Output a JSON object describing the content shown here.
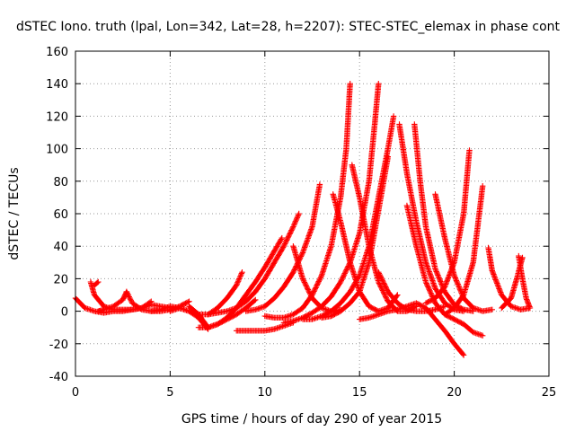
{
  "chart_data": {
    "type": "scatter",
    "title": "dSTEC Iono. truth (lpal, Lon=342, Lat=28, h=2207): STEC-STEC_elemax in phase cont",
    "xlabel": "GPS time / hours of day 290 of year 2015",
    "ylabel": "dSTEC  / TECUs",
    "xlim": [
      0,
      25
    ],
    "ylim": [
      -40,
      160
    ],
    "xticks": [
      "0",
      "5",
      "10",
      "15",
      "20",
      "25"
    ],
    "yticks": [
      "-40",
      "-20",
      "0",
      "20",
      "40",
      "60",
      "80",
      "100",
      "120",
      "140",
      "160"
    ],
    "grid": true,
    "marker": "plus",
    "color": "#ff0000",
    "tracks": [
      {
        "x": [
          0.0,
          0.5,
          1.0,
          1.5,
          2.0,
          2.5,
          3.0,
          3.5,
          4.0,
          4.5,
          5.0
        ],
        "y": [
          8,
          2,
          0,
          -1,
          0,
          0,
          1,
          2,
          4,
          3,
          2
        ]
      },
      {
        "x": [
          0.8,
          1.0,
          1.5,
          2.0,
          2.5,
          3.0,
          3.5,
          4.0
        ],
        "y": [
          18,
          10,
          3,
          1,
          1,
          1,
          2,
          6
        ]
      },
      {
        "x": [
          1.0,
          1.2
        ],
        "y": [
          16,
          18
        ]
      },
      {
        "x": [
          1.2,
          1.5,
          2.0,
          2.5,
          2.7
        ],
        "y": [
          0,
          1,
          3,
          7,
          12
        ]
      },
      {
        "x": [
          2.7,
          3.0,
          3.5,
          4.0,
          4.5,
          5.0,
          5.5,
          6.0
        ],
        "y": [
          12,
          5,
          1,
          0,
          0,
          1,
          3,
          6
        ]
      },
      {
        "x": [
          4.0,
          4.5,
          5.0,
          5.5,
          6.0,
          6.5,
          7.0
        ],
        "y": [
          0,
          1,
          3,
          2,
          0,
          -4,
          -11
        ]
      },
      {
        "x": [
          5.0,
          5.5,
          6.0,
          6.5,
          7.0,
          7.5,
          8.0,
          8.5,
          8.8
        ],
        "y": [
          0,
          2,
          0,
          -2,
          -2,
          2,
          8,
          16,
          24
        ]
      },
      {
        "x": [
          6.0,
          6.5,
          7.0,
          7.5,
          8.0,
          8.5,
          9.0,
          9.5
        ],
        "y": [
          3,
          -2,
          -10,
          -8,
          -5,
          -2,
          2,
          7
        ]
      },
      {
        "x": [
          6.5,
          7.0,
          7.5,
          8.0,
          8.5,
          9.0,
          9.5,
          10.0,
          10.5,
          10.9
        ],
        "y": [
          -10,
          -10,
          -8,
          -4,
          2,
          10,
          18,
          27,
          37,
          45
        ]
      },
      {
        "x": [
          7.0,
          7.5,
          8.0,
          8.5,
          9.0,
          9.5,
          10.0,
          10.5,
          11.0,
          11.5,
          11.8
        ],
        "y": [
          -2,
          -1,
          0,
          2,
          6,
          12,
          20,
          30,
          40,
          52,
          60
        ]
      },
      {
        "x": [
          8.5,
          9.0,
          9.5,
          10.0,
          10.5,
          11.0,
          11.5
        ],
        "y": [
          -12,
          -12,
          -12,
          -12,
          -11,
          -9,
          -7
        ]
      },
      {
        "x": [
          9.0,
          9.5,
          10.0,
          10.5,
          11.0,
          11.5,
          12.0,
          12.5,
          12.9
        ],
        "y": [
          0,
          1,
          3,
          8,
          15,
          24,
          36,
          52,
          78
        ]
      },
      {
        "x": [
          10.0,
          10.5,
          11.0,
          11.5,
          12.0,
          12.5,
          13.0,
          13.5,
          14.0,
          14.3,
          14.5
        ],
        "y": [
          -3,
          -4,
          -4,
          -2,
          2,
          10,
          22,
          40,
          70,
          100,
          140
        ]
      },
      {
        "x": [
          11.0,
          11.5,
          12.0,
          12.5,
          13.0,
          13.5,
          14.0,
          14.5,
          15.0,
          15.5,
          15.8,
          16.0
        ],
        "y": [
          -7,
          -6,
          -4,
          -1,
          3,
          9,
          18,
          30,
          48,
          80,
          115,
          140
        ]
      },
      {
        "x": [
          12.0,
          12.5,
          13.0,
          13.5,
          14.0,
          14.5,
          15.0,
          15.5,
          16.0,
          16.5,
          16.8
        ],
        "y": [
          -5,
          -5,
          -3,
          0,
          5,
          12,
          22,
          40,
          70,
          100,
          120
        ]
      },
      {
        "x": [
          13.0,
          13.5,
          14.0,
          14.5,
          15.0,
          15.5,
          16.0,
          16.5
        ],
        "y": [
          -4,
          -3,
          0,
          5,
          12,
          30,
          62,
          95
        ]
      },
      {
        "x": [
          11.5,
          12.0,
          12.5,
          13.0,
          13.5,
          14.0
        ],
        "y": [
          40,
          20,
          8,
          2,
          0,
          1
        ]
      },
      {
        "x": [
          13.6,
          14.0,
          14.5,
          15.0,
          15.5,
          16.0,
          16.5,
          17.0
        ],
        "y": [
          72,
          55,
          30,
          12,
          3,
          0,
          2,
          10
        ]
      },
      {
        "x": [
          14.6,
          15.0,
          15.5,
          16.0,
          16.5,
          17.0,
          17.5,
          18.0
        ],
        "y": [
          90,
          70,
          40,
          18,
          6,
          0,
          0,
          3
        ]
      },
      {
        "x": [
          16.0,
          16.5,
          17.0,
          17.5,
          18.0,
          18.5,
          19.0,
          19.5
        ],
        "y": [
          24,
          12,
          5,
          1,
          0,
          0,
          1,
          3
        ]
      },
      {
        "x": [
          17.1,
          17.5,
          18.0,
          18.5,
          19.0,
          19.5,
          20.0,
          20.5
        ],
        "y": [
          115,
          85,
          55,
          30,
          14,
          5,
          1,
          0
        ]
      },
      {
        "x": [
          17.9,
          18.2,
          18.5,
          19.0,
          19.5,
          20.0,
          20.5,
          21.0
        ],
        "y": [
          115,
          80,
          52,
          26,
          12,
          4,
          1,
          0
        ]
      },
      {
        "x": [
          17.5,
          18.0,
          18.5,
          19.0,
          19.5,
          20.0,
          20.5,
          21.0,
          21.5
        ],
        "y": [
          65,
          40,
          18,
          5,
          -2,
          -5,
          -8,
          -13,
          -15
        ]
      },
      {
        "x": [
          15.0,
          15.5,
          16.0,
          16.5,
          17.0,
          17.5,
          18.0,
          18.5,
          19.0,
          19.5,
          20.0,
          20.5
        ],
        "y": [
          -5,
          -4,
          -2,
          0,
          1,
          3,
          5,
          2,
          -5,
          -12,
          -20,
          -27
        ]
      },
      {
        "x": [
          19.0,
          19.5,
          20.0,
          20.5,
          21.0,
          21.5,
          22.0
        ],
        "y": [
          72,
          45,
          22,
          8,
          2,
          0,
          1
        ]
      },
      {
        "x": [
          18.5,
          19.0,
          19.5,
          20.0,
          20.5,
          20.8
        ],
        "y": [
          5,
          8,
          15,
          30,
          60,
          99
        ]
      },
      {
        "x": [
          19.5,
          20.0,
          20.5,
          21.0,
          21.5
        ],
        "y": [
          -2,
          2,
          10,
          30,
          77
        ]
      },
      {
        "x": [
          21.8,
          22.0,
          22.5,
          23.0,
          23.5,
          24.0
        ],
        "y": [
          39,
          25,
          10,
          3,
          1,
          2
        ]
      },
      {
        "x": [
          22.5,
          23.0,
          23.3,
          23.6
        ],
        "y": [
          2,
          8,
          20,
          33
        ]
      },
      {
        "x": [
          23.4,
          23.6,
          23.8,
          24.0
        ],
        "y": [
          34,
          20,
          8,
          2
        ]
      }
    ]
  }
}
